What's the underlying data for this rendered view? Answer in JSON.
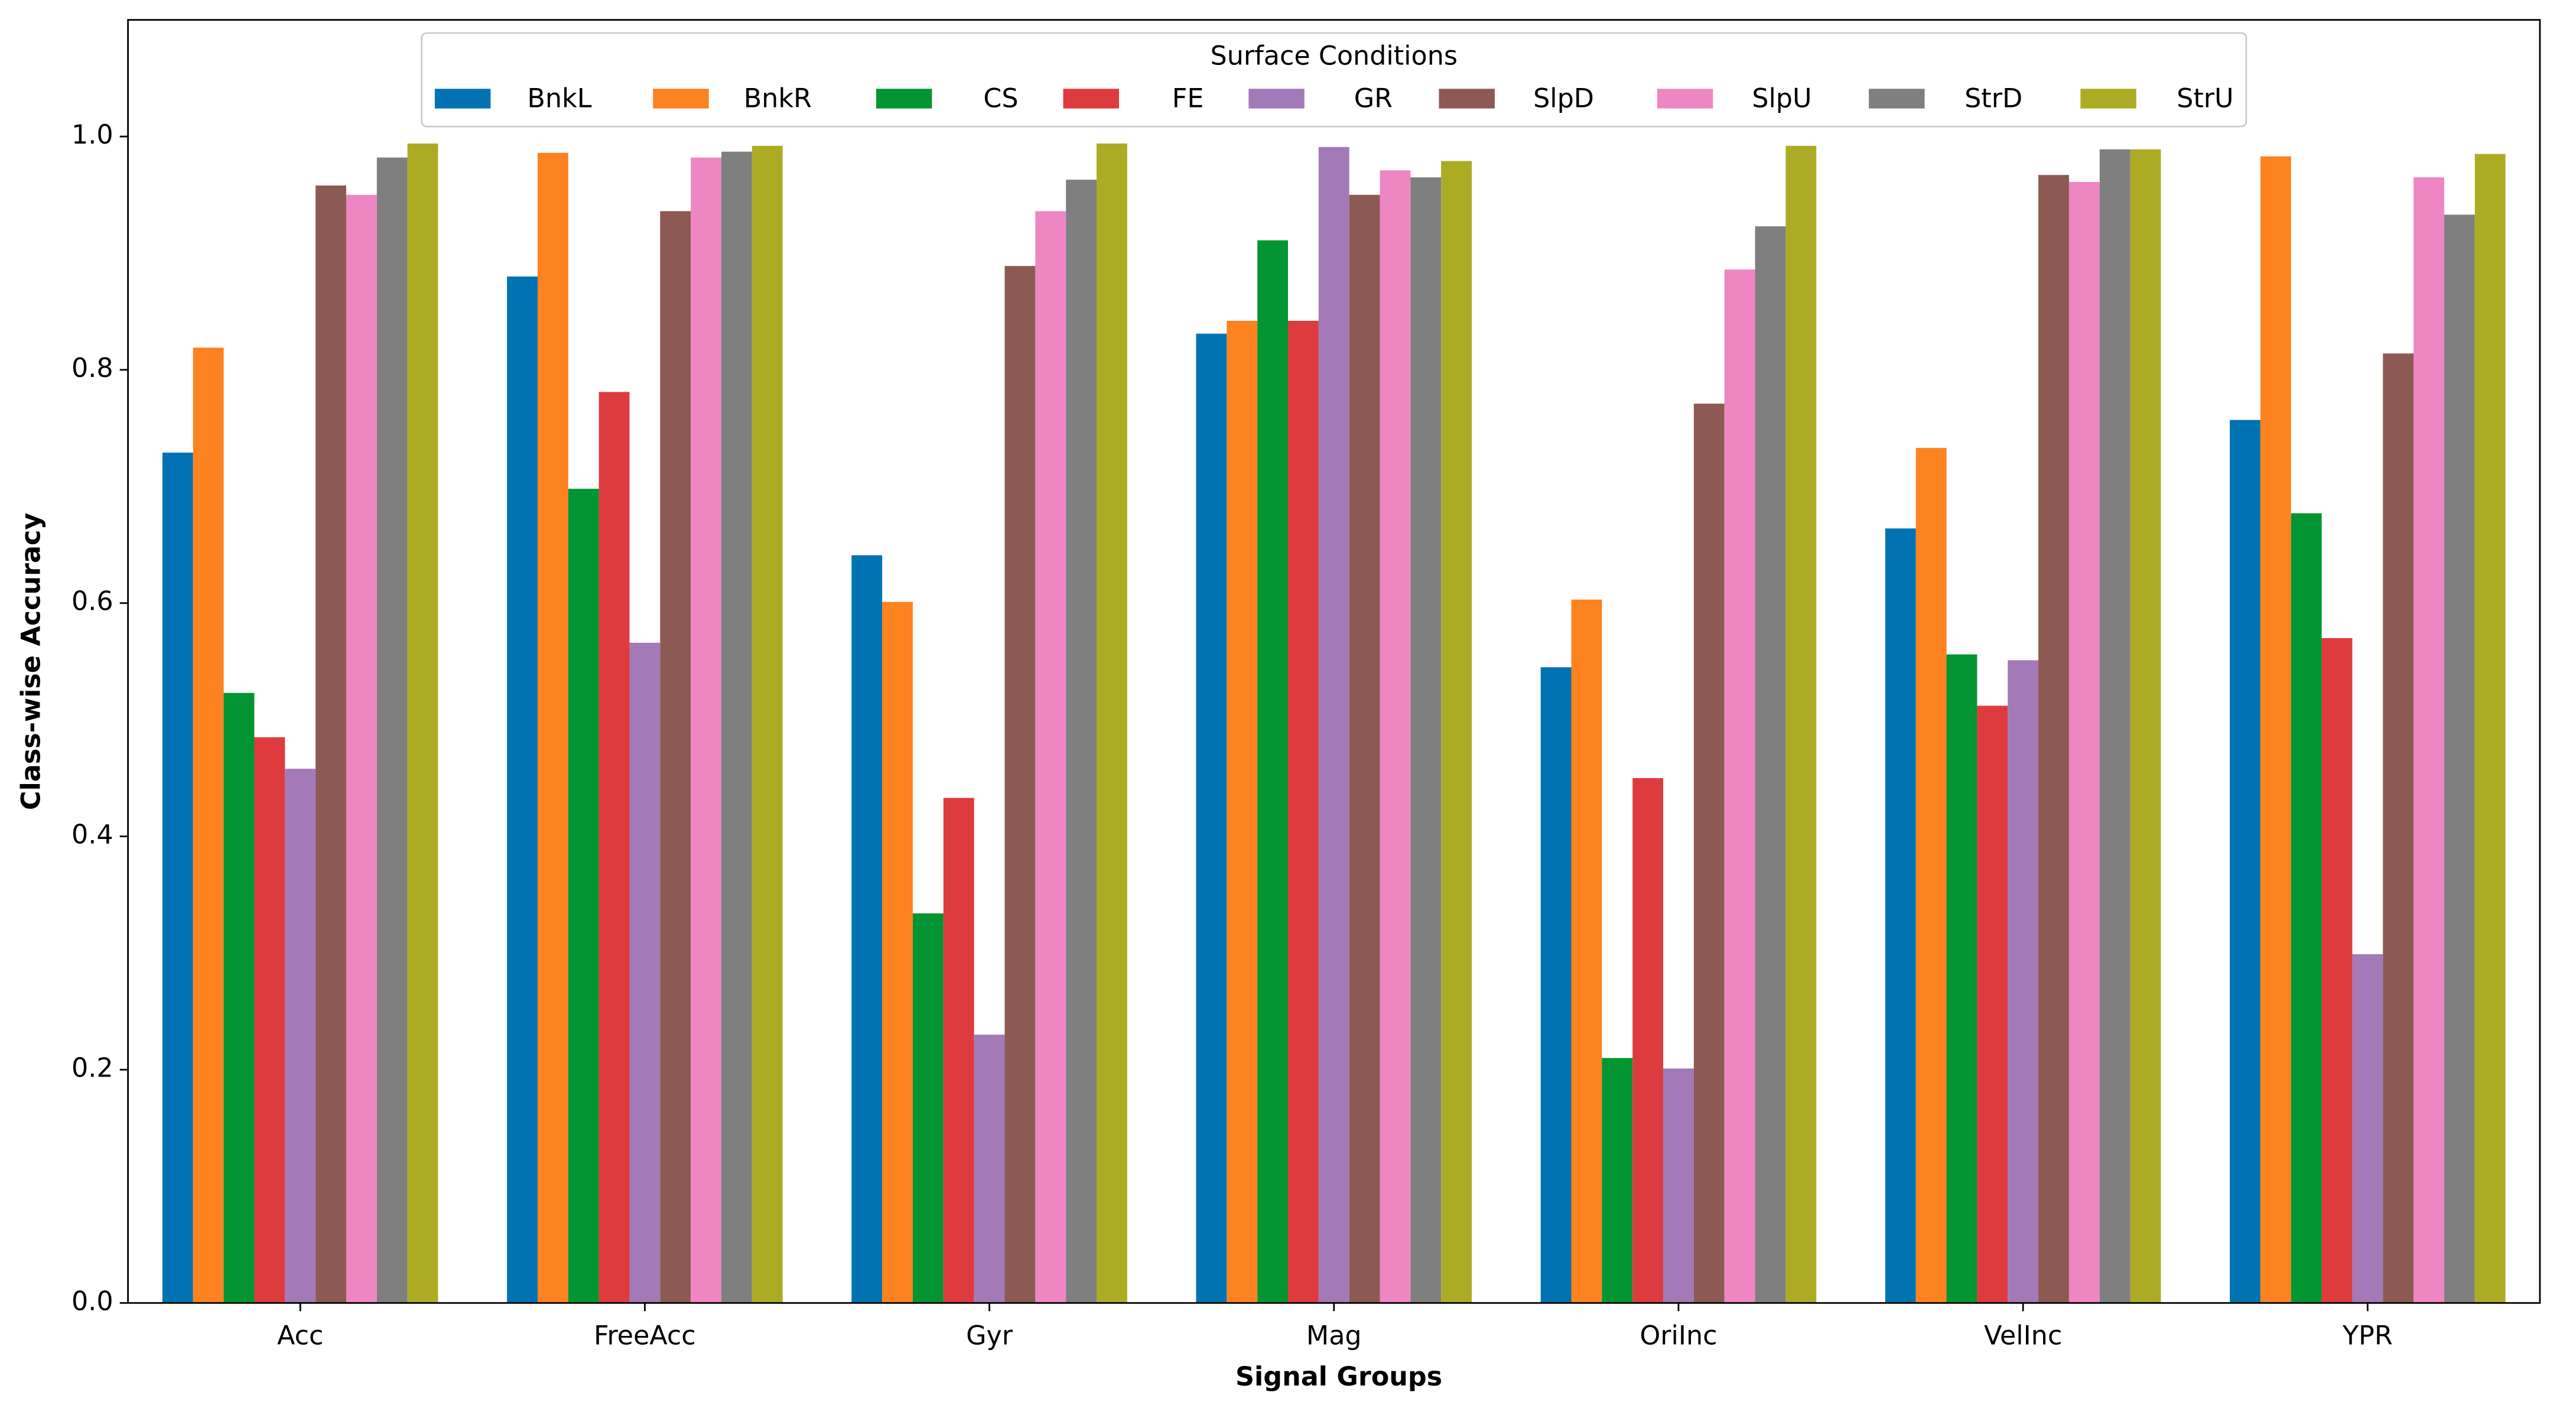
{
  "chart_data": {
    "type": "bar",
    "categories": [
      "Acc",
      "FreeAcc",
      "Gyr",
      "Mag",
      "OriInc",
      "VelInc",
      "YPR"
    ],
    "x_label": "Signal Groups",
    "y_label": "Class-wise Accuracy",
    "legend_title": "Surface Conditions",
    "legend": "upper center",
    "ylim": [
      0,
      1.1
    ],
    "yticks": [
      {
        "value": 0,
        "label": "0.0"
      },
      0.2,
      0.4,
      0.6,
      0.8,
      {
        "value": 1,
        "label": "1.0"
      }
    ],
    "grid": false,
    "series": [
      {
        "name": "BnkL",
        "color": "#0173b2",
        "values": [
          0.729,
          0.88,
          0.641,
          0.831,
          0.545,
          0.664,
          0.757
        ]
      },
      {
        "name": "BnkR",
        "color": "#fd8220",
        "values": [
          0.819,
          0.986,
          0.601,
          0.842,
          0.603,
          0.733,
          0.983
        ]
      },
      {
        "name": "CS",
        "color": "#029532",
        "values": [
          0.523,
          0.698,
          0.334,
          0.911,
          0.21,
          0.556,
          0.677
        ]
      },
      {
        "name": "FE",
        "color": "#de3b3f",
        "values": [
          0.485,
          0.781,
          0.433,
          0.842,
          0.45,
          0.512,
          0.57
        ]
      },
      {
        "name": "GR",
        "color": "#a379b8",
        "values": [
          0.458,
          0.566,
          0.23,
          0.991,
          0.201,
          0.551,
          0.299
        ]
      },
      {
        "name": "SlpD",
        "color": "#8c5a52",
        "values": [
          0.958,
          0.936,
          0.889,
          0.95,
          0.771,
          0.967,
          0.814
        ]
      },
      {
        "name": "SlpU",
        "color": "#ee86c4",
        "values": [
          0.95,
          0.982,
          0.936,
          0.971,
          0.886,
          0.961,
          0.965
        ]
      },
      {
        "name": "StrD",
        "color": "#7f7f7f",
        "values": [
          0.982,
          0.987,
          0.963,
          0.965,
          0.923,
          0.989,
          0.933
        ]
      },
      {
        "name": "StrU",
        "color": "#adab24",
        "values": [
          0.994,
          0.992,
          0.994,
          0.979,
          0.992,
          0.989,
          0.985
        ]
      }
    ]
  }
}
